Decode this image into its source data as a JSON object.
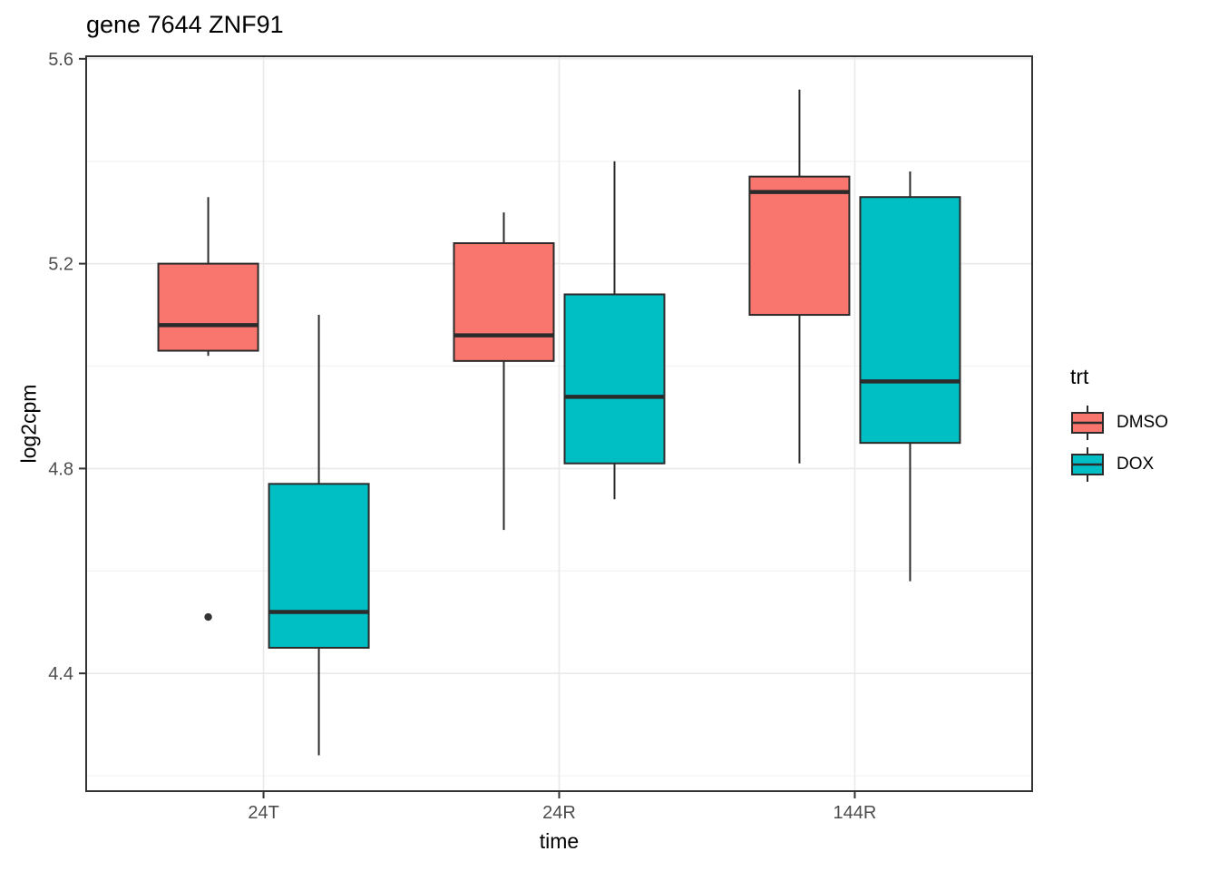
{
  "title": "gene 7644 ZNF91",
  "axes": {
    "x": {
      "label": "time",
      "categories": [
        "24T",
        "24R",
        "144R"
      ]
    },
    "y": {
      "label": "log2cpm",
      "tick_labels": [
        "5.6",
        "5.2",
        "4.8",
        "4.4"
      ]
    }
  },
  "legend": {
    "title": "trt",
    "entries": [
      {
        "label": "DMSO",
        "color": "#F8766D"
      },
      {
        "label": "DOX",
        "color": "#00BFC4"
      }
    ]
  },
  "colors": {
    "dmso": "#F8766D",
    "dox": "#00BFC4",
    "box_border": "#2b2b2b",
    "median": "#2b2b2b",
    "outlier": "#333333",
    "grid_major": "#e9e9e9",
    "grid_minor": "#f3f3f3",
    "axis_text": "#4d4d4d",
    "panel_border": "#333333",
    "background": "#ffffff"
  },
  "chart_data": {
    "type": "boxplot",
    "title": "gene 7644 ZNF91",
    "xlabel": "time",
    "ylabel": "log2cpm",
    "categories": [
      "24T",
      "24R",
      "144R"
    ],
    "ylim": [
      4.17,
      5.605
    ],
    "y_major_ticks": [
      5.6,
      5.2,
      4.8,
      4.4
    ],
    "y_minor_gridlines": [
      5.4,
      5.0,
      4.6,
      4.2
    ],
    "grid": true,
    "legend_position": "right",
    "series": [
      {
        "name": "DMSO",
        "color": "#F8766D",
        "boxes": [
          {
            "category": "24T",
            "whisker_low": 5.02,
            "q1": 5.03,
            "median": 5.08,
            "q3": 5.2,
            "whisker_high": 5.33,
            "outliers": [
              4.51
            ]
          },
          {
            "category": "24R",
            "whisker_low": 4.68,
            "q1": 5.01,
            "median": 5.06,
            "q3": 5.24,
            "whisker_high": 5.3,
            "outliers": []
          },
          {
            "category": "144R",
            "whisker_low": 4.81,
            "q1": 5.1,
            "median": 5.34,
            "q3": 5.37,
            "whisker_high": 5.54,
            "outliers": []
          }
        ]
      },
      {
        "name": "DOX",
        "color": "#00BFC4",
        "boxes": [
          {
            "category": "24T",
            "whisker_low": 4.24,
            "q1": 4.45,
            "median": 4.52,
            "q3": 4.77,
            "whisker_high": 5.1,
            "outliers": []
          },
          {
            "category": "24R",
            "whisker_low": 4.74,
            "q1": 4.81,
            "median": 4.94,
            "q3": 5.14,
            "whisker_high": 5.4,
            "outliers": []
          },
          {
            "category": "144R",
            "whisker_low": 4.58,
            "q1": 4.85,
            "median": 4.97,
            "q3": 5.33,
            "whisker_high": 5.38,
            "outliers": []
          }
        ]
      }
    ]
  }
}
